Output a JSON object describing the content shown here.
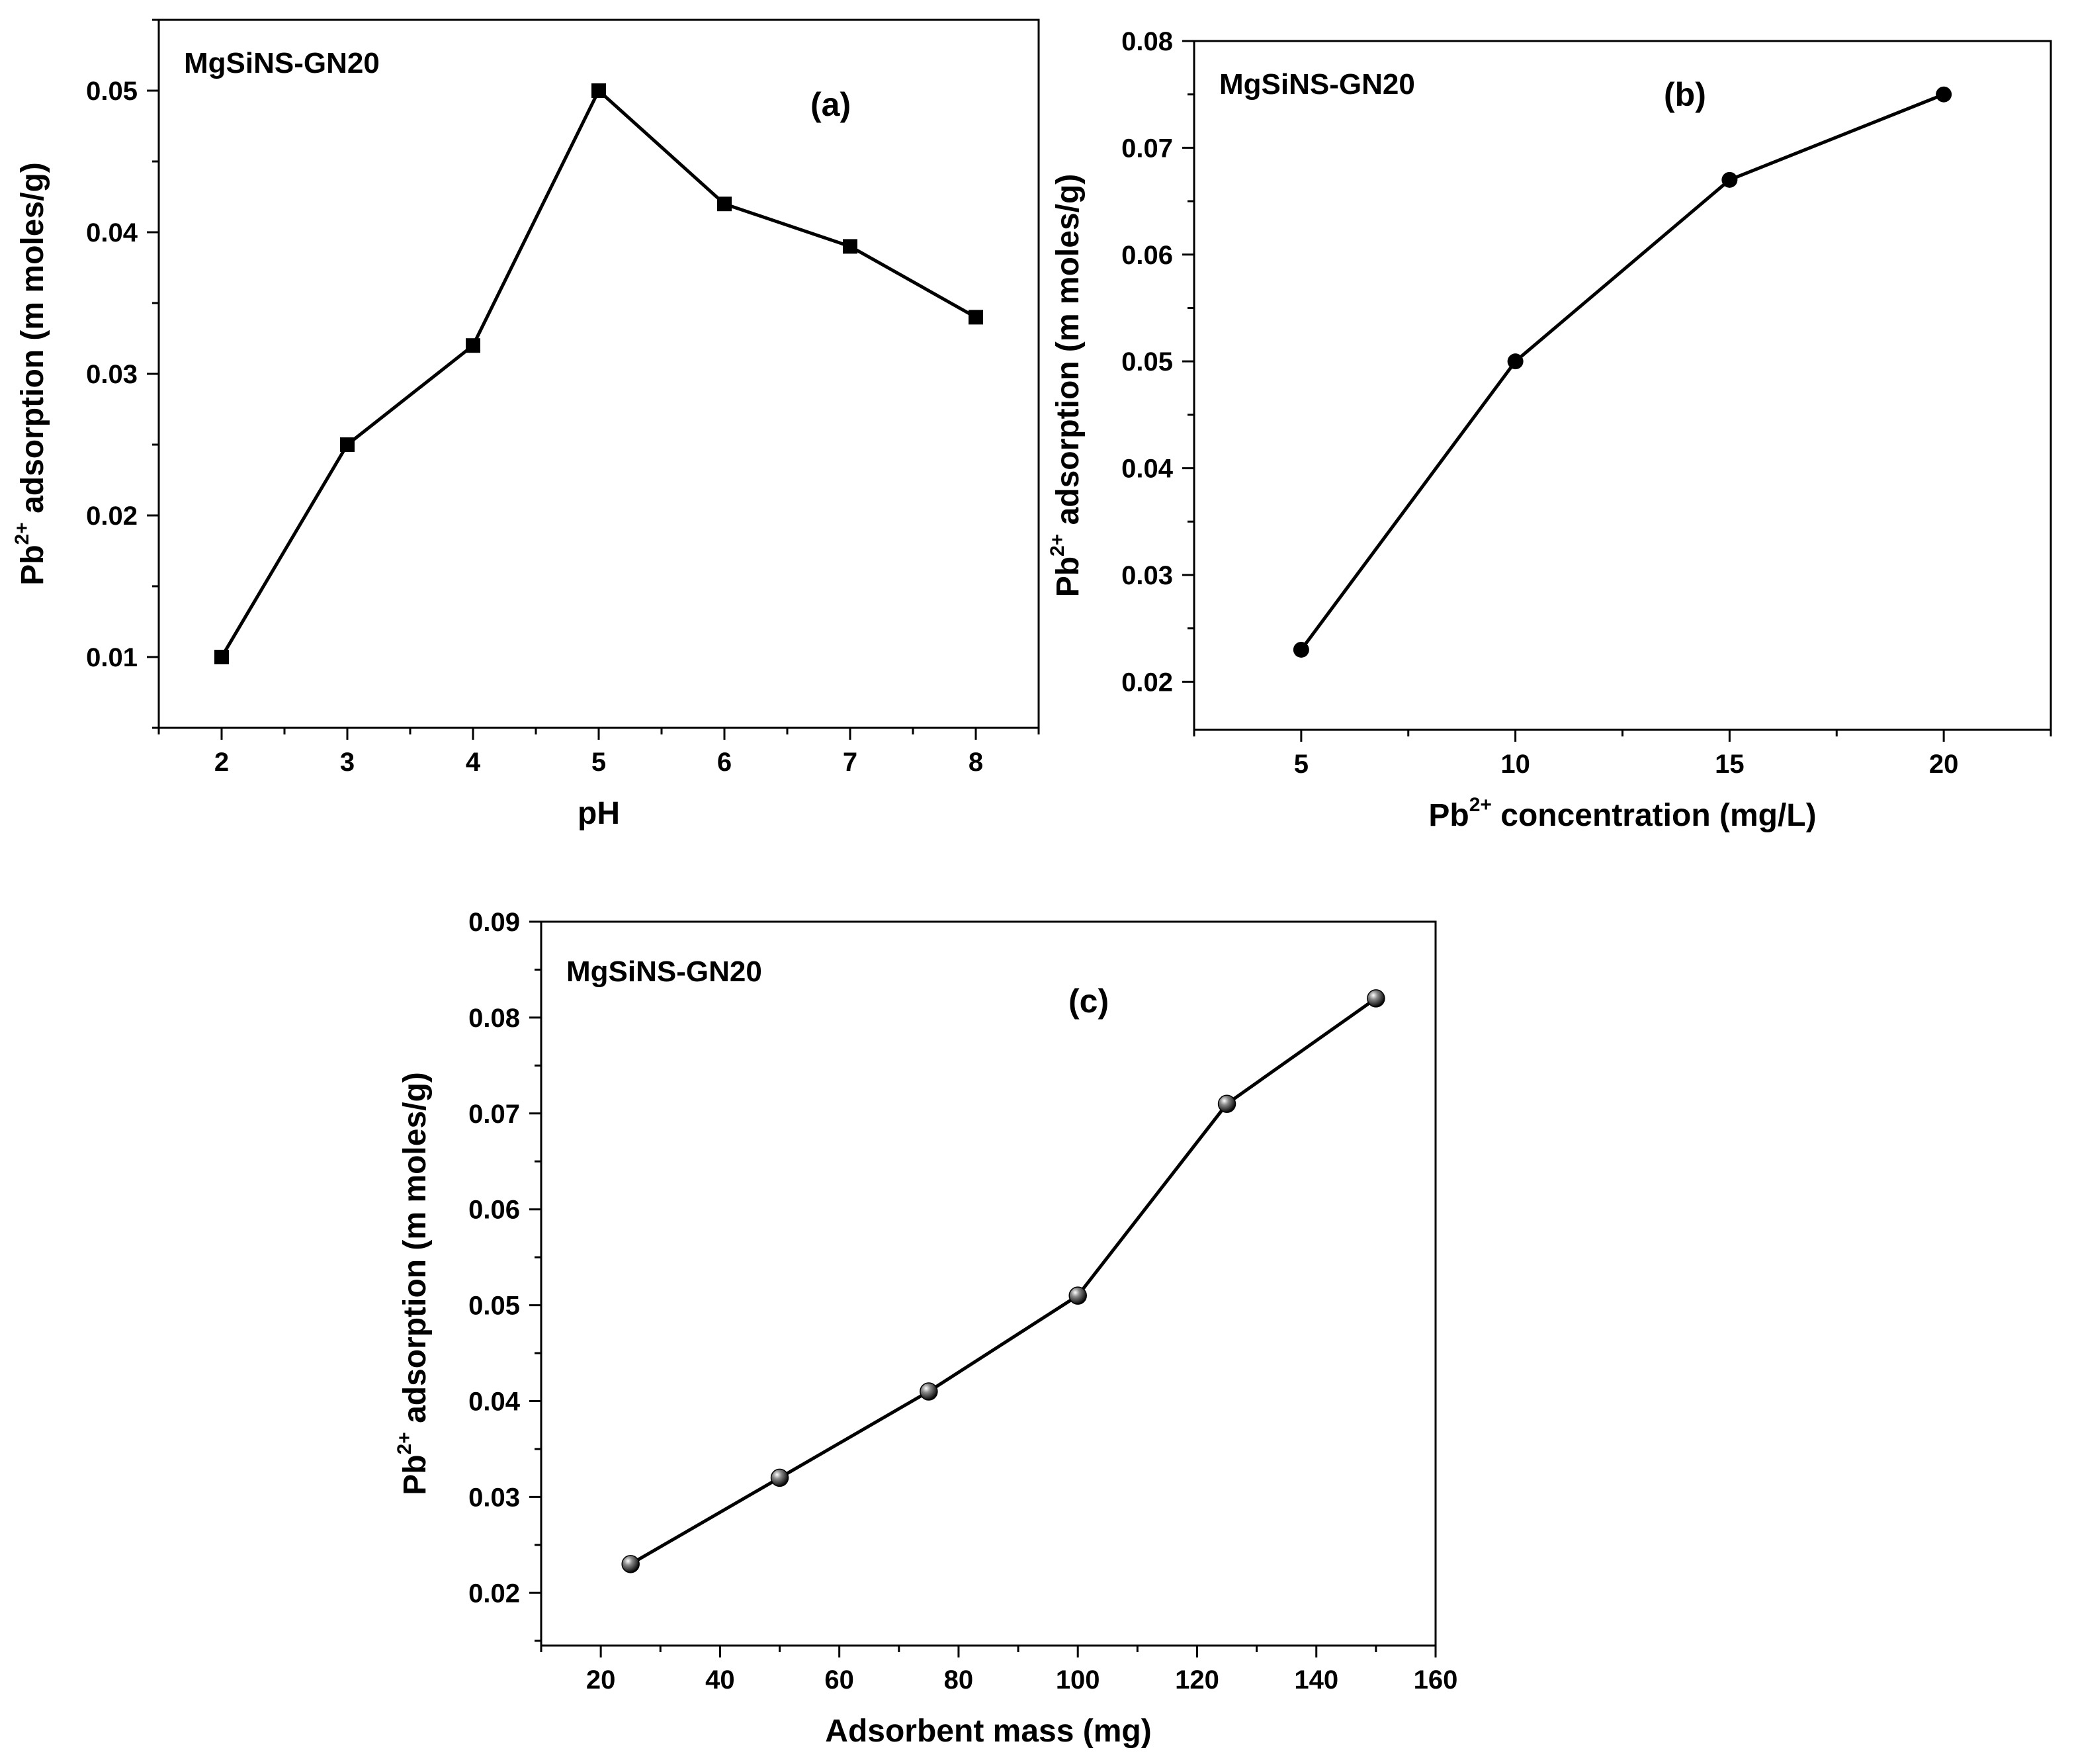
{
  "chart_data": [
    {
      "id": "a",
      "type": "line",
      "panel_label": "(a)",
      "sample_label": "MgSiNS-GN20",
      "xlabel": "pH",
      "ylabel": {
        "prefix": "Pb",
        "sup": "2+",
        "suffix": " adsorption (m moles/g)"
      },
      "xlim": [
        1.5,
        8.5
      ],
      "ylim": [
        0.005,
        0.055
      ],
      "xticks": [
        2,
        3,
        4,
        5,
        6,
        7,
        8
      ],
      "xtick_labels": [
        "2",
        "3",
        "4",
        "5",
        "6",
        "7",
        "8"
      ],
      "yticks": [
        0.01,
        0.02,
        0.03,
        0.04,
        0.05
      ],
      "ytick_labels": [
        "0.01",
        "0.02",
        "0.03",
        "0.04",
        "0.05"
      ],
      "x_minor_step": 0.5,
      "y_minor_step": 0.005,
      "marker": "square",
      "x": [
        2,
        3,
        4,
        5,
        6,
        7,
        8
      ],
      "y": [
        0.01,
        0.025,
        0.032,
        0.05,
        0.042,
        0.039,
        0.034
      ]
    },
    {
      "id": "b",
      "type": "line",
      "panel_label": "(b)",
      "sample_label": "MgSiNS-GN20",
      "xlabel": {
        "prefix": "Pb",
        "sup": "2+",
        "suffix": " concentration (mg/L)"
      },
      "ylabel": {
        "prefix": "Pb",
        "sup": "2+",
        "suffix": " adsorption (m moles/g)"
      },
      "xlim": [
        2.5,
        22.5
      ],
      "ylim": [
        0.0155,
        0.08
      ],
      "xticks": [
        5,
        10,
        15,
        20
      ],
      "xtick_labels": [
        "5",
        "10",
        "15",
        "20"
      ],
      "yticks": [
        0.02,
        0.03,
        0.04,
        0.05,
        0.06,
        0.07,
        0.08
      ],
      "ytick_labels": [
        "0.02",
        "0.03",
        "0.04",
        "0.05",
        "0.06",
        "0.07",
        "0.08"
      ],
      "x_minor_step": 2.5,
      "y_minor_step": 0.005,
      "marker": "circle",
      "x": [
        5,
        10,
        15,
        20
      ],
      "y": [
        0.023,
        0.05,
        0.067,
        0.075
      ]
    },
    {
      "id": "c",
      "type": "line",
      "panel_label": "(c)",
      "sample_label": "MgSiNS-GN20",
      "xlabel": "Adsorbent mass (mg)",
      "ylabel": {
        "prefix": "Pb",
        "sup": "2+",
        "suffix": " adsorption (m moles/g)"
      },
      "xlim": [
        10,
        160
      ],
      "ylim": [
        0.0145,
        0.09
      ],
      "xticks": [
        20,
        40,
        60,
        80,
        100,
        120,
        140,
        160
      ],
      "xtick_labels": [
        "20",
        "40",
        "60",
        "80",
        "100",
        "120",
        "140",
        "160"
      ],
      "yticks": [
        0.02,
        0.03,
        0.04,
        0.05,
        0.06,
        0.07,
        0.08,
        0.09
      ],
      "ytick_labels": [
        "0.02",
        "0.03",
        "0.04",
        "0.05",
        "0.06",
        "0.07",
        "0.08",
        "0.09"
      ],
      "x_minor_step": 10,
      "y_minor_step": 0.005,
      "marker": "sphere",
      "x": [
        25,
        50,
        75,
        100,
        125,
        150
      ],
      "y": [
        0.023,
        0.032,
        0.041,
        0.051,
        0.071,
        0.082
      ]
    }
  ]
}
